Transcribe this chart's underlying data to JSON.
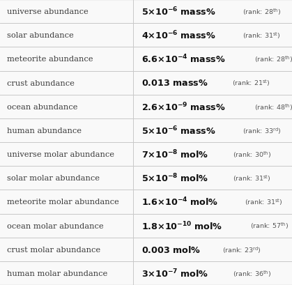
{
  "rows": [
    {
      "label": "universe abundance",
      "math_val": "$\\mathbf{5{\\times}10^{-6}}$ $\\mathbf{mass\\%}$",
      "rank": "28",
      "rank_suffix": "th"
    },
    {
      "label": "solar abundance",
      "math_val": "$\\mathbf{4{\\times}10^{-6}}$ $\\mathbf{mass\\%}$",
      "rank": "31",
      "rank_suffix": "st"
    },
    {
      "label": "meteorite abundance",
      "math_val": "$\\mathbf{6.6{\\times}10^{-4}}$ $\\mathbf{mass\\%}$",
      "rank": "28",
      "rank_suffix": "th"
    },
    {
      "label": "crust abundance",
      "math_val": "$\\mathbf{0.013}$ $\\mathbf{mass\\%}$",
      "rank": "21",
      "rank_suffix": "st",
      "simple": true
    },
    {
      "label": "ocean abundance",
      "math_val": "$\\mathbf{2.6{\\times}10^{-9}}$ $\\mathbf{mass\\%}$",
      "rank": "48",
      "rank_suffix": "th"
    },
    {
      "label": "human abundance",
      "math_val": "$\\mathbf{5{\\times}10^{-6}}$ $\\mathbf{mass\\%}$",
      "rank": "33",
      "rank_suffix": "rd"
    },
    {
      "label": "universe molar abundance",
      "math_val": "$\\mathbf{7{\\times}10^{-8}}$ $\\mathbf{mol\\%}$",
      "rank": "30",
      "rank_suffix": "th"
    },
    {
      "label": "solar molar abundance",
      "math_val": "$\\mathbf{5{\\times}10^{-8}}$ $\\mathbf{mol\\%}$",
      "rank": "31",
      "rank_suffix": "st"
    },
    {
      "label": "meteorite molar abundance",
      "math_val": "$\\mathbf{1.6{\\times}10^{-4}}$ $\\mathbf{mol\\%}$",
      "rank": "31",
      "rank_suffix": "st"
    },
    {
      "label": "ocean molar abundance",
      "math_val": "$\\mathbf{1.8{\\times}10^{-10}}$ $\\mathbf{mol\\%}$",
      "rank": "57",
      "rank_suffix": "th"
    },
    {
      "label": "crust molar abundance",
      "math_val": "$\\mathbf{0.003}$ $\\mathbf{mol\\%}$",
      "rank": "23",
      "rank_suffix": "rd",
      "simple": true
    },
    {
      "label": "human molar abundance",
      "math_val": "$\\mathbf{3{\\times}10^{-7}}$ $\\mathbf{mol\\%}$",
      "rank": "36",
      "rank_suffix": "th"
    }
  ],
  "rank_math": [
    "(rank: $28^{\\mathrm{th}}$)",
    "(rank: $31^{\\mathrm{st}}$)",
    "(rank: $28^{\\mathrm{th}}$)",
    "(rank: $21^{\\mathrm{st}}$)",
    "(rank: $48^{\\mathrm{th}}$)",
    "(rank: $33^{\\mathrm{rd}}$)",
    "(rank: $30^{\\mathrm{th}}$)",
    "(rank: $31^{\\mathrm{st}}$)",
    "(rank: $31^{\\mathrm{st}}$)",
    "(rank: $57^{\\mathrm{th}}$)",
    "(rank: $23^{\\mathrm{rd}}$)",
    "(rank: $36^{\\mathrm{th}}$)"
  ],
  "bg_color": "#f9f9f9",
  "line_color": "#c8c8c8",
  "label_color": "#3a3a3a",
  "value_color": "#111111",
  "rank_color": "#555555",
  "col_split": 0.455,
  "fig_width": 4.19,
  "fig_height": 4.1,
  "dpi": 100
}
